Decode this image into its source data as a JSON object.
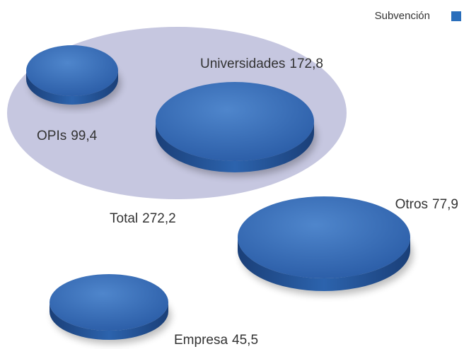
{
  "chart_data": {
    "type": "bubble",
    "categories": [
      "Total",
      "OPIs",
      "Universidades",
      "Otros",
      "Empresa"
    ],
    "series": [
      {
        "name": "Subvención",
        "color": "#2a6ebb",
        "values": [
          272.2,
          99.4,
          172.8,
          77.9,
          45.5
        ],
        "value_labels": [
          "272,2",
          "99,4",
          "172,8",
          "77,9",
          "45,5"
        ]
      }
    ]
  }
}
